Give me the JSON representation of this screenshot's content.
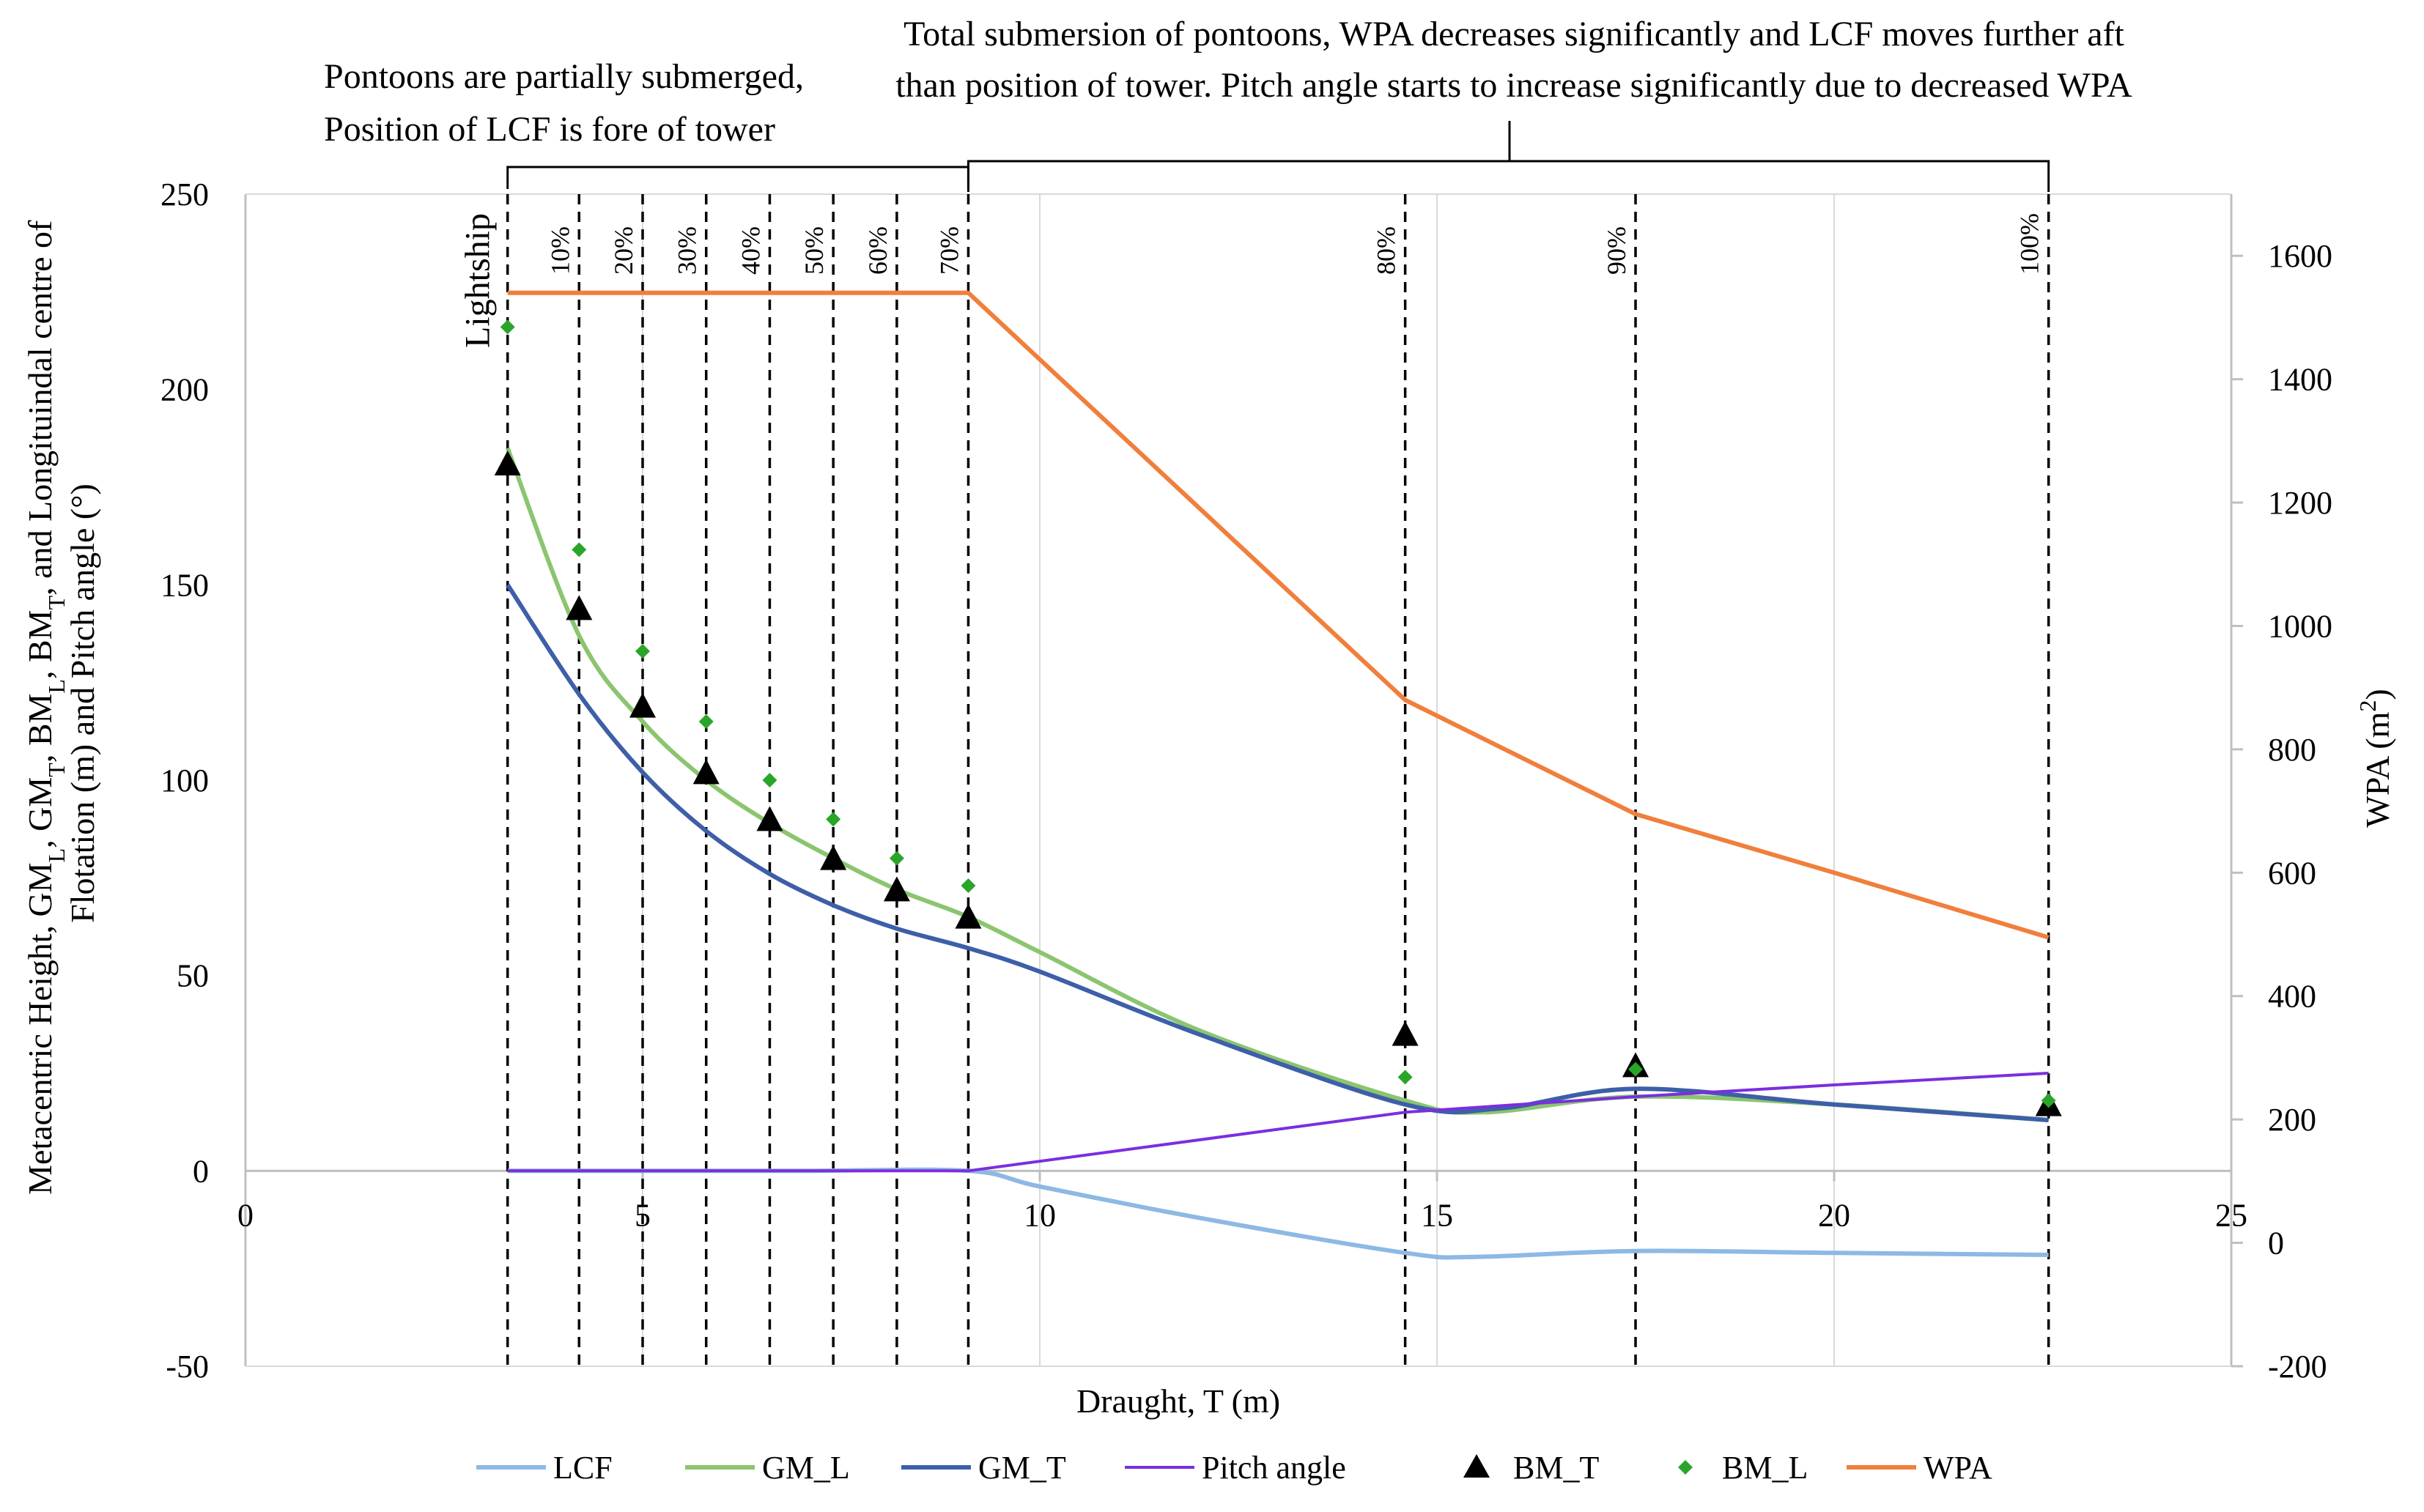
{
  "chart_data": {
    "type": "line",
    "xlabel": "Draught, T (m)",
    "ylabel_lines": [
      "Metacentric Height, GM",
      "L",
      ", GM",
      "T",
      ", BM",
      "L",
      ", BM",
      "T",
      ",  and Longituindal centre of",
      "Flotation (m) and Pitch angle (°)"
    ],
    "y2label": "WPA (m",
    "y2label_sup": "2",
    "y2label_end": ")",
    "xlim": [
      0,
      25
    ],
    "ylim": [
      -50,
      250
    ],
    "y2lim": [
      -200,
      1700
    ],
    "x_ticks": [
      0,
      5,
      10,
      15,
      20,
      25
    ],
    "x_tick_labels": [
      "0",
      "5",
      "10",
      "15",
      "20",
      "25"
    ],
    "y_ticks": [
      -50,
      0,
      50,
      100,
      150,
      200,
      250
    ],
    "y_tick_labels": [
      "-50",
      "0",
      "50",
      "100",
      "150",
      "200",
      "250"
    ],
    "y2_ticks": [
      -200,
      0,
      200,
      400,
      600,
      800,
      1000,
      1200,
      1400,
      1600
    ],
    "y2_tick_labels": [
      "-200",
      "0",
      "200",
      "400",
      "600",
      "800",
      "1000",
      "1200",
      "1400",
      "1600"
    ],
    "markers": [
      {
        "x": 3.3,
        "label": "Lightship"
      },
      {
        "x": 4.2,
        "label": "10%"
      },
      {
        "x": 5.0,
        "label": "20%"
      },
      {
        "x": 5.8,
        "label": "30%"
      },
      {
        "x": 6.6,
        "label": "40%"
      },
      {
        "x": 7.4,
        "label": "50%"
      },
      {
        "x": 8.2,
        "label": "60%"
      },
      {
        "x": 9.1,
        "label": "70%"
      },
      {
        "x": 14.6,
        "label": "80%"
      },
      {
        "x": 17.5,
        "label": "90%"
      },
      {
        "x": 22.7,
        "label": "100%"
      }
    ],
    "series": [
      {
        "name": "LCF",
        "type": "line",
        "axis": "left",
        "color": "#8db9e3",
        "x": [
          3.3,
          5,
          7,
          9.1,
          10,
          12,
          14.6,
          15.5,
          17.5,
          20,
          22.7
        ],
        "y": [
          0,
          0,
          0,
          0,
          -4,
          -12,
          -21,
          -22,
          -20.5,
          -21,
          -21.5
        ]
      },
      {
        "name": "GM_L",
        "type": "line",
        "axis": "left",
        "color": "#8bc56f",
        "x": [
          3.3,
          4.2,
          5.0,
          5.8,
          6.6,
          7.4,
          8.2,
          9.1,
          10,
          12,
          14.6,
          15.6,
          17.5,
          20,
          22.7
        ],
        "y": [
          185,
          137,
          115,
          100,
          89,
          80,
          72,
          65,
          56,
          36,
          18,
          15,
          19,
          17,
          13
        ]
      },
      {
        "name": "GM_T",
        "type": "line",
        "axis": "left",
        "color": "#3e5fa8",
        "x": [
          3.3,
          4.2,
          5.0,
          5.8,
          6.6,
          7.4,
          8.2,
          9.1,
          10,
          12,
          14.6,
          15.8,
          17.5,
          20,
          22.7
        ],
        "y": [
          150,
          122,
          102,
          87,
          76,
          68,
          62,
          57,
          51,
          35,
          17,
          16,
          21,
          17,
          13
        ]
      },
      {
        "name": "Pitch angle",
        "type": "line",
        "axis": "left",
        "color": "#7b2ee0",
        "x": [
          3.3,
          9.1,
          14.6,
          17.5,
          20,
          22.7
        ],
        "y": [
          0,
          0,
          15,
          19,
          22,
          25
        ]
      },
      {
        "name": "BM_T",
        "type": "scatter",
        "axis": "left",
        "color": "#000000",
        "marker": "triangle",
        "x": [
          3.3,
          4.2,
          5.0,
          5.8,
          6.6,
          7.4,
          8.2,
          9.1,
          14.6,
          17.5,
          22.7
        ],
        "y": [
          181,
          144,
          119,
          102,
          90,
          80,
          72,
          65,
          35,
          27,
          17
        ]
      },
      {
        "name": "BM_L",
        "type": "scatter",
        "axis": "left",
        "color": "#2aa52a",
        "marker": "diamond",
        "x": [
          3.3,
          4.2,
          5.0,
          5.8,
          6.6,
          7.4,
          8.2,
          9.1,
          14.6,
          17.5,
          22.7
        ],
        "y": [
          216,
          159,
          133,
          115,
          100,
          90,
          80,
          73,
          24,
          26,
          18
        ]
      },
      {
        "name": "WPA",
        "type": "line",
        "axis": "right",
        "color": "#f07f3c",
        "x": [
          3.3,
          9.1,
          14.6,
          17.5,
          20,
          22.7
        ],
        "y": [
          1540,
          1540,
          880,
          695,
          600,
          495
        ]
      }
    ],
    "annotations": [
      {
        "id": "partial",
        "lines": [
          "Pontoons are partially  submerged,",
          "Position of LCF is fore of tower"
        ],
        "bracket": [
          3.3,
          9.1
        ]
      },
      {
        "id": "total",
        "lines": [
          "Total submersion of pontoons, WPA decreases significantly and LCF moves further aft",
          "than position of tower. Pitch angle starts to increase significantly due to decreased WPA"
        ],
        "bracket": [
          9.1,
          22.7
        ]
      }
    ],
    "legend_position": "bottom"
  }
}
